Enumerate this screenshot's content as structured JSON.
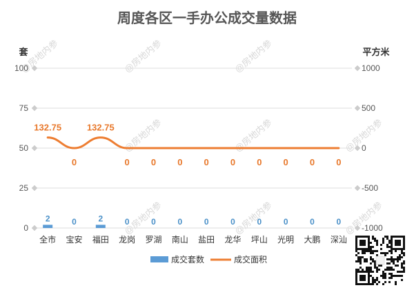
{
  "chart_data": {
    "type": "bar+line",
    "title": "周度各区一手办公成交量数据",
    "categories": [
      "全市",
      "宝安",
      "福田",
      "龙岗",
      "罗湖",
      "南山",
      "盐田",
      "龙华",
      "坪山",
      "光明",
      "大鹏",
      "深汕"
    ],
    "series": [
      {
        "name": "成交套数",
        "kind": "bar",
        "axis": "left",
        "color": "#5b9bd5",
        "values": [
          2,
          0,
          2,
          0,
          0,
          0,
          0,
          0,
          0,
          0,
          0,
          0
        ],
        "labels": [
          "2",
          "0",
          "2",
          "0",
          "0",
          "0",
          "0",
          "0",
          "0",
          "0",
          "0",
          "0"
        ]
      },
      {
        "name": "成交面积",
        "kind": "line",
        "axis": "right",
        "color": "#ed7d31",
        "values": [
          132.75,
          0,
          132.75,
          0,
          0,
          0,
          0,
          0,
          0,
          0,
          0,
          0
        ],
        "labels": [
          "132.75",
          "0",
          "132.75",
          "0",
          "0",
          "0",
          "0",
          "0",
          "0",
          "0",
          "0",
          "0"
        ]
      }
    ],
    "left_axis": {
      "unit": "套",
      "min": 0,
      "max": 100,
      "ticks": [
        "0",
        "25",
        "50",
        "75",
        "100"
      ]
    },
    "right_axis": {
      "unit": "平方米",
      "min": -1000,
      "max": 1000,
      "ticks": [
        "-1000",
        "-500",
        "0",
        "500",
        "1000"
      ]
    },
    "grid": true,
    "legend_position": "bottom",
    "watermark": "@房地内参"
  }
}
